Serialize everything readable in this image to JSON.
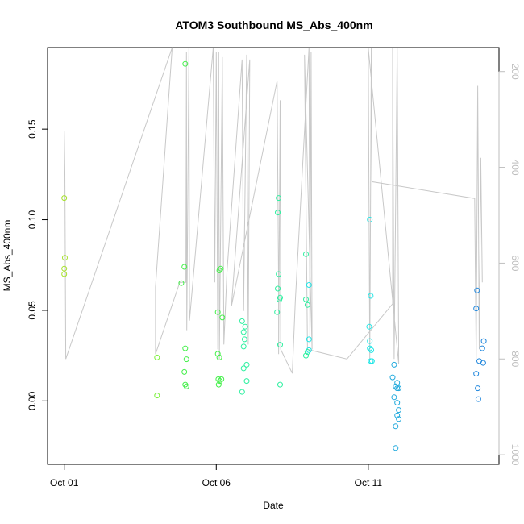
{
  "chart_data": {
    "type": "scatter",
    "title": "ATOM3 Southbound MS_Abs_400nm",
    "xlabel": "Date",
    "ylabel": "MS_Abs_400nm",
    "x_ticks": [
      {
        "day": 0,
        "label": "Oct 01"
      },
      {
        "day": 5,
        "label": "Oct 06"
      },
      {
        "day": 10,
        "label": "Oct 11"
      }
    ],
    "xlim_days": [
      -0.55,
      14.3
    ],
    "ylim": [
      -0.035,
      0.195
    ],
    "y_ticks": [
      {
        "value": 0.0,
        "label": "0.00"
      },
      {
        "value": 0.05,
        "label": "0.05"
      },
      {
        "value": 0.1,
        "label": "0.10"
      },
      {
        "value": 0.15,
        "label": "0.15"
      }
    ],
    "secondary_axis": {
      "side": "right",
      "inverted": true,
      "range": [
        1020,
        150
      ],
      "ticks": [
        {
          "value": 200,
          "label": "200"
        },
        {
          "value": 400,
          "label": "400"
        },
        {
          "value": 600,
          "label": "600"
        },
        {
          "value": 800,
          "label": "800"
        },
        {
          "value": 1000,
          "label": "1000"
        }
      ],
      "color": "#bebebe"
    },
    "grid": false,
    "legend": "none",
    "point_color_scale": [
      "#a6e22a",
      "#7cf03a",
      "#44f04a",
      "#2ef0a0",
      "#22e6e6",
      "#22aadd",
      "#2288dd"
    ],
    "points": [
      [
        0.0,
        0.112
      ],
      [
        0.02,
        0.079
      ],
      [
        0.0,
        0.073
      ],
      [
        0.0,
        0.07
      ],
      [
        3.05,
        0.024
      ],
      [
        3.05,
        0.003
      ],
      [
        3.85,
        0.065
      ],
      [
        3.95,
        0.074
      ],
      [
        3.98,
        0.186
      ],
      [
        3.98,
        0.029
      ],
      [
        4.02,
        0.023
      ],
      [
        3.95,
        0.016
      ],
      [
        3.98,
        0.009
      ],
      [
        4.02,
        0.008
      ],
      [
        5.05,
        0.049
      ],
      [
        5.1,
        0.072
      ],
      [
        5.15,
        0.073
      ],
      [
        5.2,
        0.046
      ],
      [
        5.05,
        0.026
      ],
      [
        5.1,
        0.024
      ],
      [
        5.07,
        0.012
      ],
      [
        5.12,
        0.011
      ],
      [
        5.17,
        0.012
      ],
      [
        5.08,
        0.009
      ],
      [
        5.85,
        0.044
      ],
      [
        5.95,
        0.041
      ],
      [
        5.9,
        0.038
      ],
      [
        5.93,
        0.034
      ],
      [
        5.9,
        0.03
      ],
      [
        6.0,
        0.02
      ],
      [
        5.9,
        0.018
      ],
      [
        6.0,
        0.011
      ],
      [
        5.85,
        0.005
      ],
      [
        7.05,
        0.112
      ],
      [
        7.02,
        0.104
      ],
      [
        7.05,
        0.07
      ],
      [
        7.02,
        0.062
      ],
      [
        7.1,
        0.057
      ],
      [
        7.08,
        0.056
      ],
      [
        7.0,
        0.049
      ],
      [
        7.1,
        0.031
      ],
      [
        7.1,
        0.009
      ],
      [
        7.95,
        0.081
      ],
      [
        8.05,
        0.064
      ],
      [
        7.95,
        0.056
      ],
      [
        8.0,
        0.053
      ],
      [
        8.05,
        0.034
      ],
      [
        8.05,
        0.028
      ],
      [
        8.0,
        0.027
      ],
      [
        7.95,
        0.025
      ],
      [
        10.05,
        0.1
      ],
      [
        10.08,
        0.058
      ],
      [
        10.03,
        0.041
      ],
      [
        10.05,
        0.033
      ],
      [
        10.05,
        0.029
      ],
      [
        10.1,
        0.028
      ],
      [
        10.08,
        0.022
      ],
      [
        10.12,
        0.022
      ],
      [
        10.85,
        0.02
      ],
      [
        10.8,
        0.013
      ],
      [
        10.95,
        0.01
      ],
      [
        10.9,
        0.008
      ],
      [
        10.95,
        0.007
      ],
      [
        11.0,
        0.007
      ],
      [
        10.85,
        0.002
      ],
      [
        10.95,
        -0.001
      ],
      [
        11.0,
        -0.005
      ],
      [
        10.95,
        -0.008
      ],
      [
        11.0,
        -0.01
      ],
      [
        10.9,
        -0.014
      ],
      [
        10.9,
        -0.026
      ],
      [
        13.58,
        0.061
      ],
      [
        13.55,
        0.051
      ],
      [
        13.8,
        0.033
      ],
      [
        13.75,
        0.029
      ],
      [
        13.65,
        0.022
      ],
      [
        13.78,
        0.021
      ],
      [
        13.55,
        0.015
      ],
      [
        13.6,
        0.007
      ],
      [
        13.62,
        0.001
      ]
    ],
    "line_series": {
      "name": "",
      "color": "#c8c8c8",
      "points": [
        [
          0.0,
          325
        ],
        [
          0.02,
          410
        ],
        [
          0.05,
          800
        ],
        [
          3.55,
          150
        ],
        [
          3.0,
          650
        ],
        [
          3.0,
          790
        ],
        [
          3.8,
          640
        ],
        [
          4.0,
          640
        ],
        [
          4.02,
          160
        ],
        [
          4.03,
          740
        ],
        [
          4.1,
          150
        ],
        [
          4.12,
          720
        ],
        [
          4.9,
          150
        ],
        [
          4.95,
          640
        ],
        [
          5.0,
          160
        ],
        [
          5.05,
          780
        ],
        [
          5.08,
          160
        ],
        [
          5.1,
          800
        ],
        [
          5.2,
          170
        ],
        [
          5.25,
          770
        ],
        [
          5.35,
          620
        ],
        [
          5.85,
          175
        ],
        [
          5.9,
          700
        ],
        [
          6.0,
          165
        ],
        [
          6.05,
          770
        ],
        [
          6.1,
          175
        ],
        [
          5.5,
          690
        ],
        [
          7.0,
          220
        ],
        [
          7.05,
          650
        ],
        [
          7.05,
          790
        ],
        [
          7.1,
          260
        ],
        [
          7.12,
          780
        ],
        [
          7.5,
          830
        ],
        [
          7.6,
          680
        ],
        [
          8.05,
          150
        ],
        [
          8.08,
          770
        ],
        [
          8.12,
          160
        ],
        [
          8.15,
          780
        ],
        [
          7.9,
          165
        ],
        [
          8.0,
          780
        ],
        [
          9.3,
          800
        ],
        [
          10.8,
          685
        ],
        [
          10.8,
          150
        ],
        [
          10.85,
          800
        ],
        [
          10.95,
          150
        ],
        [
          11.0,
          810
        ],
        [
          10.0,
          150
        ],
        [
          10.05,
          800
        ],
        [
          10.1,
          150
        ],
        [
          10.12,
          430
        ],
        [
          13.5,
          465
        ],
        [
          13.55,
          800
        ],
        [
          13.6,
          230
        ],
        [
          13.65,
          780
        ],
        [
          13.7,
          380
        ],
        [
          13.75,
          640
        ]
      ]
    }
  }
}
